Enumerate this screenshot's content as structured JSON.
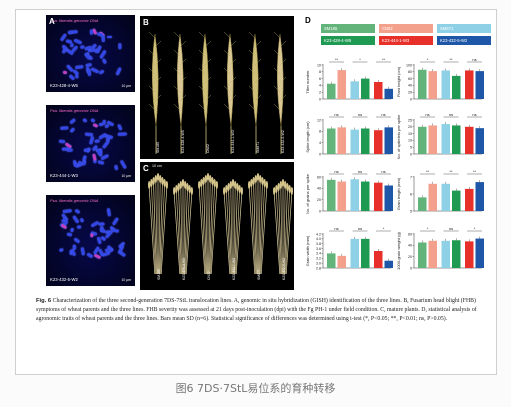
{
  "figure": {
    "panel_labels": {
      "A": "A",
      "B": "B",
      "C": "C",
      "D": "D"
    },
    "panelA": {
      "probe_text": "Psa. liberalis genomic DNA",
      "scale": "10 μm",
      "cells": [
        {
          "label": "K23-428-4-W5"
        },
        {
          "label": "K23-444-1-W3"
        },
        {
          "label": "K23-432-5-W2"
        }
      ]
    },
    "panelB": {
      "spikes": [
        "SM185",
        "K23-428-4-W5",
        "CN02",
        "K23-444-1-W3",
        "SM871",
        "K23-432-5-W2"
      ]
    },
    "panelC": {
      "scale": "10 cm",
      "plants": [
        "SM185",
        "K23-428-4-W5",
        "CN02",
        "K23-444-1-W3",
        "SM871",
        "K23-432-5-W2"
      ]
    },
    "legend": [
      {
        "name": "SM185",
        "color": "#62b47a"
      },
      {
        "name": "CN02",
        "color": "#f3a08c"
      },
      {
        "name": "SM871",
        "color": "#8ed0e5"
      },
      {
        "name": "K23-428-4-W5",
        "color": "#1f9a52"
      },
      {
        "name": "K23-444-1-W3",
        "color": "#e8302a"
      },
      {
        "name": "K23-432-5-W2",
        "color": "#1e56a8"
      }
    ],
    "caption": {
      "fig_label": "Fig. 6",
      "text": "Characterization of the three second-generation 7DS-7StL translocation lines. A, genomic in situ hybridization (GISH) identification of the three lines. B, Fusarium head blight (FHB) symptoms of wheat parents and the three lines. FHB severity was assessed at 21 days post-inoculation (dpi) with the Fg PH-1 under field condition. C, mature plants. D, statistical analysis of agronomic traits of wheat parents and the three lines. Bars mean SD (n=6). Statistical significance of differences was determined using t-test (*, P<0.05; **, P<0.01; ns, P>0.05)."
    }
  },
  "chart_data": [
    {
      "type": "bar",
      "ylabel": "Tiller number",
      "categories": [
        "SM185",
        "K23-428-4-W5",
        "CN02",
        "K23-444-1-W3",
        "SM871",
        "K23-432-5-W2"
      ],
      "values": [
        4.5,
        8.5,
        5.2,
        6.0,
        5.0,
        3.0
      ],
      "ylim": [
        0,
        10
      ],
      "yticks": [
        "0",
        "2",
        "4",
        "6",
        "8",
        "10"
      ],
      "significance": [
        "**",
        "*",
        "**"
      ]
    },
    {
      "type": "bar",
      "ylabel": "Plant height (cm)",
      "categories": [
        "SM185",
        "K23-428-4-W5",
        "CN02",
        "K23-444-1-W3",
        "SM871",
        "K23-432-5-W2"
      ],
      "values": [
        86,
        82,
        84,
        68,
        84,
        82
      ],
      "ylim": [
        0,
        100
      ],
      "yticks": [
        "0",
        "20",
        "40",
        "60",
        "80",
        "100"
      ],
      "significance": [
        "*",
        "**",
        "ns"
      ]
    },
    {
      "type": "bar",
      "ylabel": "Spike length (cm)",
      "categories": [
        "SM185",
        "K23-428-4-W5",
        "CN02",
        "K23-444-1-W3",
        "SM871",
        "K23-432-5-W2"
      ],
      "values": [
        9.0,
        9.4,
        8.6,
        9.0,
        8.4,
        9.4
      ],
      "ylim": [
        0,
        12
      ],
      "yticks": [
        "0",
        "4",
        "8",
        "12"
      ],
      "significance": [
        "ns",
        "ns",
        "ns"
      ]
    },
    {
      "type": "bar",
      "ylabel": "No. of spikelets per spike",
      "categories": [
        "SM185",
        "K23-428-4-W5",
        "CN02",
        "K23-444-1-W3",
        "SM871",
        "K23-432-5-W2"
      ],
      "values": [
        20,
        21,
        22,
        21,
        20,
        19
      ],
      "ylim": [
        0,
        25
      ],
      "yticks": [
        "0",
        "5",
        "10",
        "15",
        "20",
        "25"
      ],
      "significance": [
        "ns",
        "ns",
        "ns"
      ]
    },
    {
      "type": "bar",
      "ylabel": "No. of grains per spike",
      "categories": [
        "SM185",
        "K23-428-4-W5",
        "CN02",
        "K23-444-1-W3",
        "SM871",
        "K23-432-5-W2"
      ],
      "values": [
        55,
        52,
        56,
        52,
        50,
        45
      ],
      "ylim": [
        0,
        60
      ],
      "yticks": [
        "0",
        "20",
        "40",
        "60"
      ],
      "significance": [
        "ns",
        "ns",
        "ns"
      ]
    },
    {
      "type": "bar",
      "ylabel": "Grain length (mm)",
      "categories": [
        "SM185",
        "K23-428-4-W5",
        "CN02",
        "K23-444-1-W3",
        "SM871",
        "K23-432-5-W2"
      ],
      "values": [
        5.8,
        6.6,
        6.6,
        6.2,
        6.3,
        6.7
      ],
      "ylim": [
        5,
        7
      ],
      "yticks": [
        "5",
        "6",
        "7"
      ],
      "significance": [
        "**",
        "**",
        "**"
      ]
    },
    {
      "type": "bar",
      "ylabel": "Grain width (mm)",
      "categories": [
        "SM185",
        "K23-428-4-W5",
        "CN02",
        "K23-444-1-W3",
        "SM871",
        "K23-432-5-W2"
      ],
      "values": [
        3.4,
        3.3,
        4.0,
        4.0,
        3.5,
        3.1
      ],
      "ylim": [
        2.8,
        4.2
      ],
      "yticks": [
        "2.8",
        "3.0",
        "3.2",
        "3.4",
        "3.6",
        "3.8",
        "4.0",
        "4.2"
      ],
      "significance": [
        "ns",
        "ns",
        "*"
      ]
    },
    {
      "type": "bar",
      "ylabel": "1000-grain weight (g)",
      "categories": [
        "SM185",
        "K23-428-4-W5",
        "CN02",
        "K23-444-1-W3",
        "SM871",
        "K23-432-5-W2"
      ],
      "values": [
        45,
        48,
        48,
        49,
        47,
        52
      ],
      "ylim": [
        0,
        60
      ],
      "yticks": [
        "0",
        "20",
        "40",
        "60"
      ],
      "significance": [
        "*",
        "ns",
        "*"
      ]
    }
  ],
  "footer": "图6 7DS·7StL易位系的育种转移"
}
